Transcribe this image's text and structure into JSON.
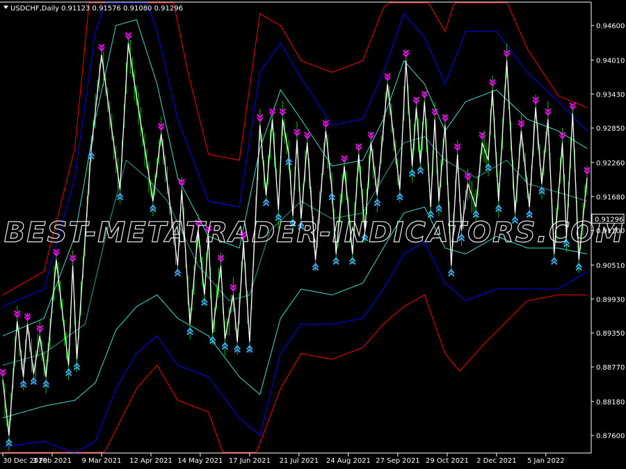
{
  "chart_data": {
    "type": "line",
    "header": {
      "symbol_timeframe": "USDCHF,Daily",
      "ohlc": "0.91123 0.91576 0.91080 0.91296"
    },
    "watermark": "BEST-METATRADER-INDICATORS.COM",
    "current_price_label": "0.91296",
    "current_price": 0.91296,
    "ylim": [
      0.873,
      0.95
    ],
    "yticks": [
      {
        "value": 0.946,
        "label": "0.94600"
      },
      {
        "value": 0.9401,
        "label": "0.94010"
      },
      {
        "value": 0.9343,
        "label": "0.93430"
      },
      {
        "value": 0.9285,
        "label": "0.92850"
      },
      {
        "value": 0.9226,
        "label": "0.92260"
      },
      {
        "value": 0.9168,
        "label": "0.91680"
      },
      {
        "value": 0.911,
        "label": "0.91100"
      },
      {
        "value": 0.9051,
        "label": "0.90510"
      },
      {
        "value": 0.8993,
        "label": "0.89930"
      },
      {
        "value": 0.8935,
        "label": "0.89350"
      },
      {
        "value": 0.8877,
        "label": "0.88770"
      },
      {
        "value": 0.8818,
        "label": "0.88180"
      },
      {
        "value": 0.876,
        "label": "0.87600"
      }
    ],
    "xlim": [
      0,
      284
    ],
    "xticks": [
      {
        "value": 0,
        "label": "30 Dec 2020"
      },
      {
        "value": 24,
        "label": "3 Feb 2021"
      },
      {
        "value": 48,
        "label": "9 Mar 2021"
      },
      {
        "value": 72,
        "label": "12 Apr 2021"
      },
      {
        "value": 96,
        "label": "14 May 2021"
      },
      {
        "value": 120,
        "label": "17 Jun 2021"
      },
      {
        "value": 144,
        "label": "21 Jul 2021"
      },
      {
        "value": 168,
        "label": "24 Aug 2021"
      },
      {
        "value": 192,
        "label": "27 Sep 2021"
      },
      {
        "value": 216,
        "label": "29 Oct 2021"
      },
      {
        "value": 240,
        "label": "2 Dec 2021"
      },
      {
        "value": 264,
        "label": "5 Jan 2022"
      }
    ],
    "colors": {
      "background": "#000000",
      "axis": "#ffffff",
      "bars": "#00c800",
      "zigzag": "#ffffff",
      "midline": "#40e0d0",
      "band_outer": "#ff0000",
      "band_middle": "#0000ff",
      "band_inner": "#40e0d0",
      "arrow_down": "#ff00ff",
      "arrow_up": "#3fa9f5"
    },
    "zigzag_points": [
      [
        0,
        0.8855
      ],
      [
        3,
        0.876
      ],
      [
        7,
        0.8955
      ],
      [
        10,
        0.886
      ],
      [
        12,
        0.895
      ],
      [
        15,
        0.8865
      ],
      [
        18,
        0.893
      ],
      [
        21,
        0.886
      ],
      [
        26,
        0.906
      ],
      [
        32,
        0.888
      ],
      [
        34,
        0.905
      ],
      [
        36,
        0.889
      ],
      [
        43,
        0.925
      ],
      [
        48,
        0.941
      ],
      [
        57,
        0.918
      ],
      [
        61,
        0.943
      ],
      [
        73,
        0.916
      ],
      [
        77,
        0.9275
      ],
      [
        85,
        0.905
      ],
      [
        87,
        0.918
      ],
      [
        91,
        0.895
      ],
      [
        95,
        0.911
      ],
      [
        98,
        0.9
      ],
      [
        100,
        0.91
      ],
      [
        102,
        0.8935
      ],
      [
        106,
        0.905
      ],
      [
        108,
        0.8925
      ],
      [
        112,
        0.9
      ],
      [
        114,
        0.892
      ],
      [
        117,
        0.909
      ],
      [
        120,
        0.892
      ],
      [
        125,
        0.929
      ],
      [
        128,
        0.917
      ],
      [
        131,
        0.93
      ],
      [
        134,
        0.9145
      ],
      [
        136,
        0.93
      ],
      [
        139,
        0.924
      ],
      [
        141,
        0.9135
      ],
      [
        143,
        0.9265
      ],
      [
        145,
        0.913
      ],
      [
        148,
        0.926
      ],
      [
        152,
        0.906
      ],
      [
        157,
        0.928
      ],
      [
        160,
        0.918
      ],
      [
        162,
        0.907
      ],
      [
        166,
        0.922
      ],
      [
        170,
        0.907
      ],
      [
        173,
        0.924
      ],
      [
        176,
        0.911
      ],
      [
        179,
        0.926
      ],
      [
        182,
        0.917
      ],
      [
        187,
        0.936
      ],
      [
        193,
        0.918
      ],
      [
        196,
        0.94
      ],
      [
        199,
        0.922
      ],
      [
        201,
        0.932
      ],
      [
        203,
        0.9225
      ],
      [
        205,
        0.933
      ],
      [
        208,
        0.915
      ],
      [
        210,
        0.93
      ],
      [
        212,
        0.916
      ],
      [
        215,
        0.929
      ],
      [
        218,
        0.905
      ],
      [
        221,
        0.924
      ],
      [
        223,
        0.911
      ],
      [
        226,
        0.919
      ],
      [
        230,
        0.915
      ],
      [
        233,
        0.926
      ],
      [
        236,
        0.923
      ],
      [
        238,
        0.935
      ],
      [
        241,
        0.916
      ],
      [
        245,
        0.94
      ],
      [
        249,
        0.914
      ],
      [
        252,
        0.928
      ],
      [
        256,
        0.915
      ],
      [
        259,
        0.932
      ],
      [
        262,
        0.919
      ],
      [
        265,
        0.93
      ],
      [
        268,
        0.907
      ],
      [
        272,
        0.926
      ],
      [
        274,
        0.91
      ],
      [
        277,
        0.931
      ],
      [
        280,
        0.906
      ],
      [
        284,
        0.92
      ]
    ],
    "midline": [
      [
        0,
        0.888
      ],
      [
        20,
        0.89
      ],
      [
        40,
        0.895
      ],
      [
        50,
        0.91
      ],
      [
        60,
        0.923
      ],
      [
        70,
        0.92
      ],
      [
        80,
        0.916
      ],
      [
        95,
        0.905
      ],
      [
        110,
        0.899
      ],
      [
        120,
        0.9
      ],
      [
        130,
        0.911
      ],
      [
        145,
        0.916
      ],
      [
        160,
        0.913
      ],
      [
        175,
        0.914
      ],
      [
        185,
        0.92
      ],
      [
        195,
        0.926
      ],
      [
        205,
        0.927
      ],
      [
        215,
        0.923
      ],
      [
        230,
        0.92
      ],
      [
        245,
        0.923
      ],
      [
        255,
        0.919
      ],
      [
        265,
        0.918
      ],
      [
        275,
        0.917
      ],
      [
        284,
        0.916
      ]
    ],
    "bands": {
      "inner_upper": [
        [
          0,
          0.893
        ],
        [
          20,
          0.896
        ],
        [
          35,
          0.91
        ],
        [
          45,
          0.93
        ],
        [
          55,
          0.946
        ],
        [
          65,
          0.947
        ],
        [
          75,
          0.936
        ],
        [
          85,
          0.92
        ],
        [
          100,
          0.91
        ],
        [
          115,
          0.908
        ],
        [
          125,
          0.925
        ],
        [
          135,
          0.935
        ],
        [
          145,
          0.93
        ],
        [
          160,
          0.922
        ],
        [
          175,
          0.923
        ],
        [
          185,
          0.93
        ],
        [
          195,
          0.94
        ],
        [
          205,
          0.936
        ],
        [
          215,
          0.928
        ],
        [
          225,
          0.933
        ],
        [
          240,
          0.935
        ],
        [
          255,
          0.93
        ],
        [
          270,
          0.928
        ],
        [
          284,
          0.925
        ]
      ],
      "inner_lower": [
        [
          0,
          0.879
        ],
        [
          20,
          0.881
        ],
        [
          35,
          0.882
        ],
        [
          45,
          0.885
        ],
        [
          55,
          0.894
        ],
        [
          65,
          0.898
        ],
        [
          75,
          0.9
        ],
        [
          85,
          0.896
        ],
        [
          100,
          0.893
        ],
        [
          115,
          0.886
        ],
        [
          125,
          0.883
        ],
        [
          135,
          0.896
        ],
        [
          145,
          0.901
        ],
        [
          160,
          0.9
        ],
        [
          175,
          0.902
        ],
        [
          185,
          0.908
        ],
        [
          195,
          0.914
        ],
        [
          205,
          0.915
        ],
        [
          215,
          0.908
        ],
        [
          225,
          0.907
        ],
        [
          240,
          0.91
        ],
        [
          255,
          0.908
        ],
        [
          270,
          0.908
        ],
        [
          284,
          0.907
        ]
      ],
      "middle_upper": [
        [
          0,
          0.898
        ],
        [
          20,
          0.901
        ],
        [
          35,
          0.92
        ],
        [
          45,
          0.945
        ],
        [
          55,
          0.955
        ],
        [
          65,
          0.955
        ],
        [
          75,
          0.945
        ],
        [
          85,
          0.93
        ],
        [
          100,
          0.916
        ],
        [
          115,
          0.915
        ],
        [
          125,
          0.938
        ],
        [
          135,
          0.943
        ],
        [
          145,
          0.937
        ],
        [
          160,
          0.929
        ],
        [
          175,
          0.93
        ],
        [
          185,
          0.938
        ],
        [
          195,
          0.948
        ],
        [
          205,
          0.944
        ],
        [
          215,
          0.936
        ],
        [
          225,
          0.945
        ],
        [
          240,
          0.945
        ],
        [
          255,
          0.938
        ],
        [
          270,
          0.933
        ],
        [
          284,
          0.928
        ]
      ],
      "middle_lower": [
        [
          0,
          0.874
        ],
        [
          20,
          0.875
        ],
        [
          35,
          0.873
        ],
        [
          45,
          0.875
        ],
        [
          55,
          0.884
        ],
        [
          65,
          0.89
        ],
        [
          75,
          0.893
        ],
        [
          85,
          0.888
        ],
        [
          100,
          0.886
        ],
        [
          115,
          0.879
        ],
        [
          125,
          0.876
        ],
        [
          135,
          0.89
        ],
        [
          145,
          0.895
        ],
        [
          160,
          0.895
        ],
        [
          175,
          0.896
        ],
        [
          185,
          0.901
        ],
        [
          195,
          0.907
        ],
        [
          205,
          0.909
        ],
        [
          215,
          0.902
        ],
        [
          225,
          0.899
        ],
        [
          240,
          0.901
        ],
        [
          255,
          0.901
        ],
        [
          270,
          0.901
        ],
        [
          284,
          0.904
        ]
      ],
      "outer_upper": [
        [
          0,
          0.9
        ],
        [
          20,
          0.904
        ],
        [
          35,
          0.925
        ],
        [
          42,
          0.95
        ],
        [
          55,
          0.96
        ],
        [
          70,
          0.96
        ],
        [
          80,
          0.955
        ],
        [
          90,
          0.938
        ],
        [
          100,
          0.924
        ],
        [
          115,
          0.923
        ],
        [
          125,
          0.948
        ],
        [
          135,
          0.946
        ],
        [
          145,
          0.94
        ],
        [
          160,
          0.938
        ],
        [
          175,
          0.94
        ],
        [
          185,
          0.949
        ],
        [
          195,
          0.952
        ],
        [
          205,
          0.951
        ],
        [
          215,
          0.945
        ],
        [
          225,
          0.956
        ],
        [
          240,
          0.954
        ],
        [
          255,
          0.942
        ],
        [
          270,
          0.934
        ],
        [
          284,
          0.932
        ]
      ],
      "outer_lower": [
        [
          0,
          0.87
        ],
        [
          20,
          0.87
        ],
        [
          35,
          0.87
        ],
        [
          45,
          0.87
        ],
        [
          55,
          0.877
        ],
        [
          65,
          0.884
        ],
        [
          75,
          0.888
        ],
        [
          85,
          0.882
        ],
        [
          100,
          0.88
        ],
        [
          110,
          0.87
        ],
        [
          120,
          0.87
        ],
        [
          135,
          0.884
        ],
        [
          145,
          0.89
        ],
        [
          160,
          0.889
        ],
        [
          175,
          0.891
        ],
        [
          185,
          0.895
        ],
        [
          195,
          0.898
        ],
        [
          205,
          0.9
        ],
        [
          215,
          0.89
        ],
        [
          222,
          0.887
        ],
        [
          235,
          0.892
        ],
        [
          255,
          0.899
        ],
        [
          270,
          0.9
        ],
        [
          284,
          0.9
        ]
      ]
    }
  }
}
